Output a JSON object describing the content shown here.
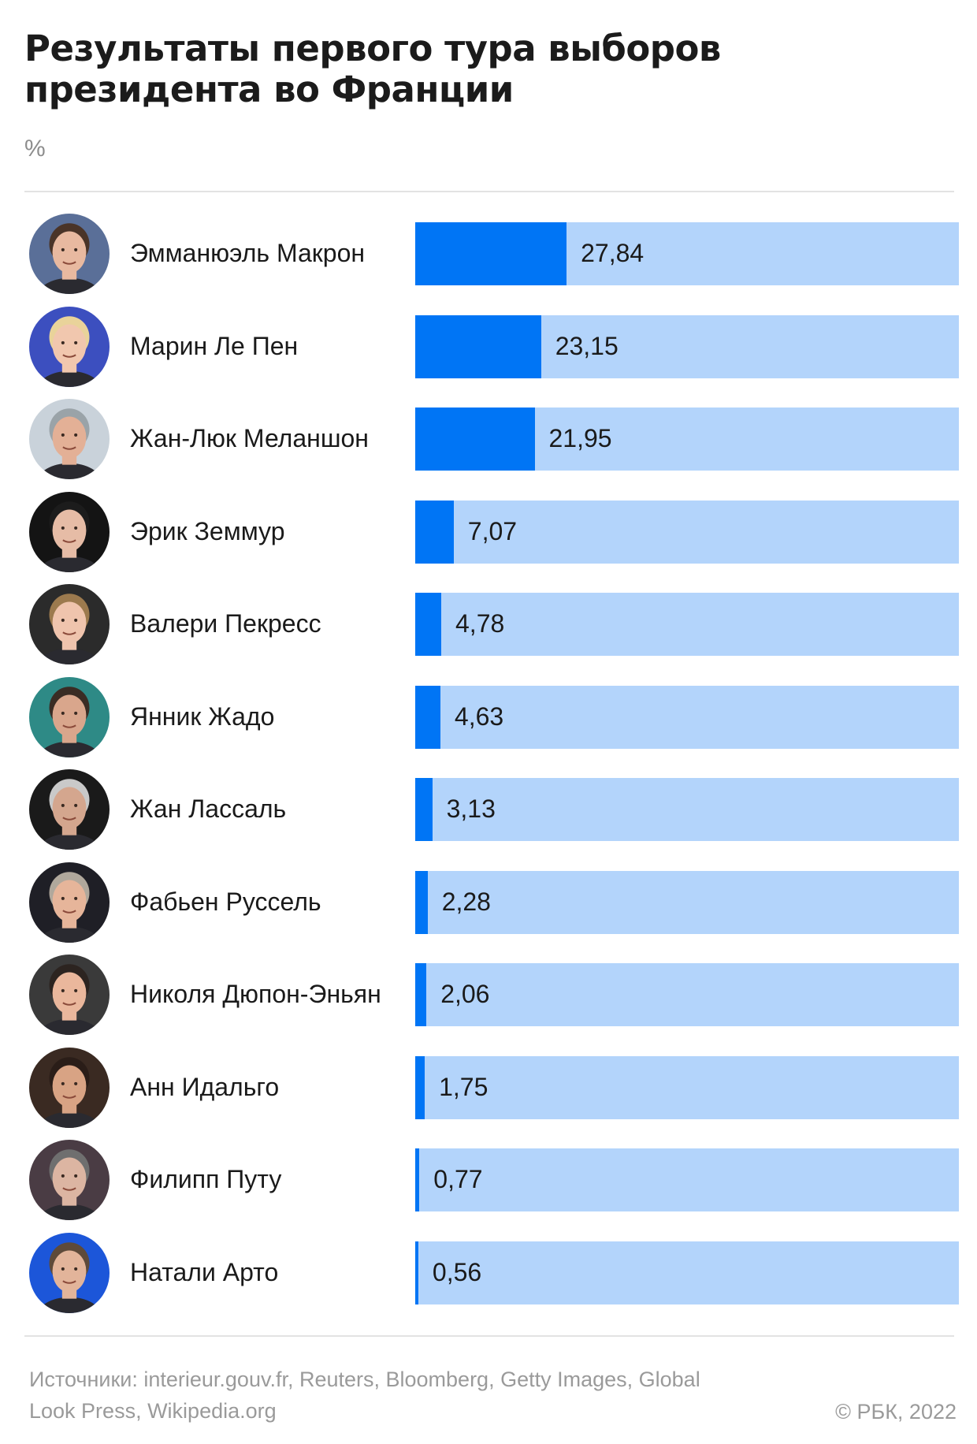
{
  "header": {
    "title": "Результаты первого тура выборов президента во Франции",
    "unit": "%"
  },
  "footer": {
    "sources": "Источники: interieur.gouv.fr, Reuters, Bloomberg, Getty Images, Global Look Press, Wikipedia.org",
    "copyright": "©  РБК, 2022"
  },
  "colors": {
    "bar_fill": "#0075f5",
    "bar_track": "#b3d4fb"
  },
  "chart_data": {
    "type": "bar",
    "orientation": "horizontal",
    "title": "Результаты первого тура выборов президента во Франции",
    "unit": "%",
    "xlim": [
      0,
      100
    ],
    "grid": false,
    "legend": "none",
    "categories": [
      "Эмманюэль Макрон",
      "Марин Ле Пен",
      "Жан-Люк Меланшон",
      "Эрик Земмур",
      "Валери Пекресс",
      "Янник Жадо",
      "Жан Лассаль",
      "Фабьен Руссель",
      "Николя Дюпон-Эньян",
      "Анн Идальго",
      "Филипп Путу",
      "Натали Арто"
    ],
    "values": [
      27.84,
      23.15,
      21.95,
      7.07,
      4.78,
      4.63,
      3.13,
      2.28,
      2.06,
      1.75,
      0.77,
      0.56
    ],
    "value_labels": [
      "27,84",
      "23,15",
      "21,95",
      "7,07",
      "4,78",
      "4,63",
      "3,13",
      "2,28",
      "2,06",
      "1,75",
      "0,77",
      "0,56"
    ],
    "avatars": [
      {
        "icon": "portrait-icon",
        "bg": "#5a6f98",
        "skin": "#e8b9a0",
        "hair": "#4a3428"
      },
      {
        "icon": "portrait-icon",
        "bg": "#3c4fbf",
        "skin": "#f1c7ae",
        "hair": "#e9d39a"
      },
      {
        "icon": "portrait-icon",
        "bg": "#c9d2da",
        "skin": "#e3b096",
        "hair": "#9aa3a8"
      },
      {
        "icon": "portrait-icon",
        "bg": "#141414",
        "skin": "#e6bca6",
        "hair": "#1c1c1c"
      },
      {
        "icon": "portrait-icon",
        "bg": "#2b2b2b",
        "skin": "#efc4ad",
        "hair": "#9c7a4e"
      },
      {
        "icon": "portrait-icon",
        "bg": "#2e8a86",
        "skin": "#d9a68c",
        "hair": "#3a2c24"
      },
      {
        "icon": "portrait-icon",
        "bg": "#1a1a1a",
        "skin": "#d4a68e",
        "hair": "#c9c9c9"
      },
      {
        "icon": "portrait-icon",
        "bg": "#1f1f26",
        "skin": "#e6b59a",
        "hair": "#b0a89c"
      },
      {
        "icon": "portrait-icon",
        "bg": "#3a3a3a",
        "skin": "#eab79c",
        "hair": "#2c2420"
      },
      {
        "icon": "portrait-icon",
        "bg": "#3a2a22",
        "skin": "#d8a384",
        "hair": "#2a1d18"
      },
      {
        "icon": "portrait-icon",
        "bg": "#4a3c44",
        "skin": "#dcb5a2",
        "hair": "#6f6f6f"
      },
      {
        "icon": "portrait-icon",
        "bg": "#1c56d9",
        "skin": "#e2b49a",
        "hair": "#5e4a3a"
      }
    ]
  }
}
